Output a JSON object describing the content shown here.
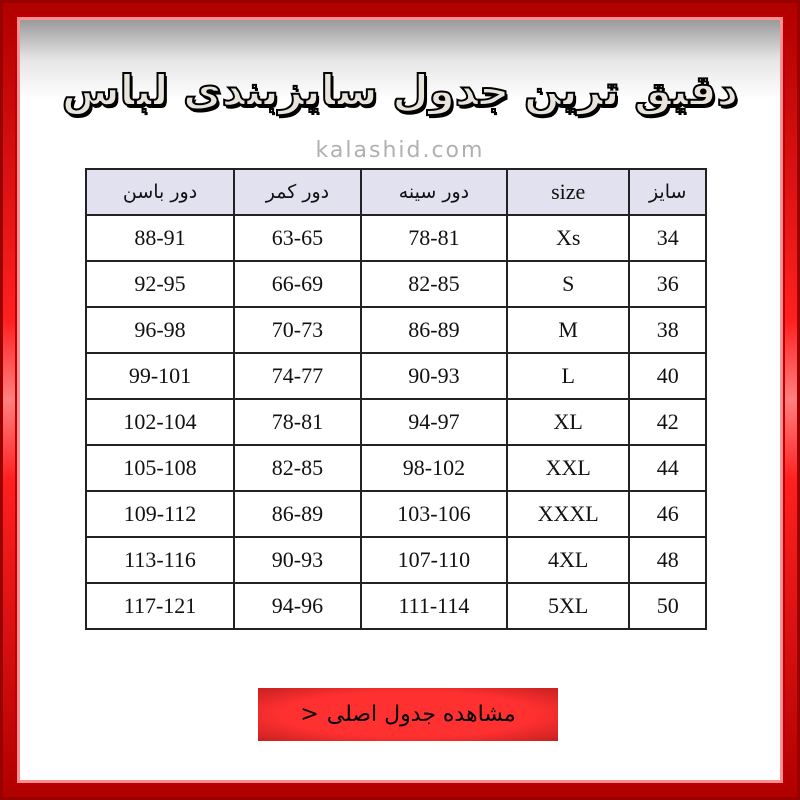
{
  "title": "دقیق ترین جدول سایزبندی لباس",
  "watermark": "kalashid.com",
  "table": {
    "headers": [
      "سایز",
      "size",
      "دور سینه",
      "دور کمر",
      "دور باسن"
    ],
    "rows": [
      [
        "34",
        "Xs",
        "78-81",
        "63-65",
        "88-91"
      ],
      [
        "36",
        "S",
        "82-85",
        "66-69",
        "92-95"
      ],
      [
        "38",
        "M",
        "86-89",
        "70-73",
        "96-98"
      ],
      [
        "40",
        "L",
        "90-93",
        "74-77",
        "99-101"
      ],
      [
        "42",
        "XL",
        "94-97",
        "78-81",
        "102-104"
      ],
      [
        "44",
        "XXL",
        "98-102",
        "82-85",
        "105-108"
      ],
      [
        "46",
        "XXXL",
        "103-106",
        "86-89",
        "109-112"
      ],
      [
        "48",
        "4XL",
        "107-110",
        "90-93",
        "113-116"
      ],
      [
        "50",
        "5XL",
        "111-114",
        "94-96",
        "117-121"
      ]
    ]
  },
  "button": {
    "label": "مشاهده جدول اصلی",
    "arrow": "<"
  },
  "colors": {
    "frame": "#ff0000",
    "header_bg": "#e2e1ef",
    "button": "#ff3030"
  }
}
